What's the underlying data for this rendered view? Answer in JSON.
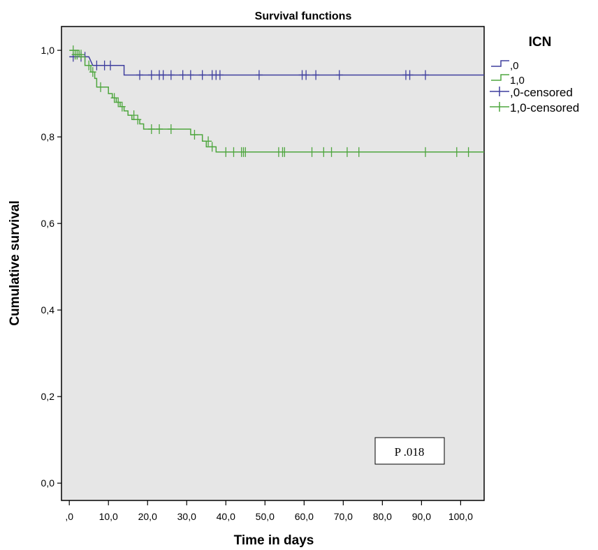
{
  "chart_data": {
    "type": "line",
    "subtype": "kaplan-meier step",
    "title": "Survival functions",
    "xlabel": "Time in days",
    "ylabel": "Cumulative survival",
    "xlim": [
      -2,
      106
    ],
    "ylim": [
      -0.04,
      1.055
    ],
    "xticks": [
      0,
      10,
      20,
      30,
      40,
      50,
      60,
      70,
      80,
      90,
      100
    ],
    "xtick_labels": [
      ",0",
      "10,0",
      "20,0",
      "30,0",
      "40,0",
      "50,0",
      "60,0",
      "70,0",
      "80,0",
      "90,0",
      "100,0"
    ],
    "yticks": [
      0,
      0.2,
      0.4,
      0.6,
      0.8,
      1.0
    ],
    "ytick_labels": [
      "0,0",
      "0,2",
      "0,4",
      "0,6",
      "0,8",
      "1,0"
    ],
    "grid": false,
    "plot_background": "#e6e6e6",
    "legend": {
      "title": "ICN",
      "placement": "right-top",
      "entries": [
        ",0",
        "1,0",
        ",0-censored",
        "1,0-censored"
      ]
    },
    "annotation": "P .018",
    "series": [
      {
        "name": ",0",
        "color": "#3f3f9e",
        "steps": [
          [
            0,
            0.985
          ],
          [
            5,
            0.985
          ],
          [
            5.5,
            0.975
          ],
          [
            6,
            0.965
          ],
          [
            14,
            0.965
          ],
          [
            14,
            0.943
          ],
          [
            106,
            0.943
          ]
        ],
        "censored": [
          [
            1,
            0.985
          ],
          [
            3,
            0.985
          ],
          [
            4,
            0.985
          ],
          [
            7,
            0.965
          ],
          [
            9,
            0.965
          ],
          [
            10.5,
            0.965
          ],
          [
            18,
            0.943
          ],
          [
            21,
            0.943
          ],
          [
            23,
            0.943
          ],
          [
            24,
            0.943
          ],
          [
            26,
            0.943
          ],
          [
            29,
            0.943
          ],
          [
            31,
            0.943
          ],
          [
            34,
            0.943
          ],
          [
            36.5,
            0.943
          ],
          [
            37.5,
            0.943
          ],
          [
            38.5,
            0.943
          ],
          [
            48.5,
            0.943
          ],
          [
            59.5,
            0.943
          ],
          [
            60.5,
            0.943
          ],
          [
            63,
            0.943
          ],
          [
            69,
            0.943
          ],
          [
            86,
            0.943
          ],
          [
            87,
            0.943
          ],
          [
            91,
            0.943
          ]
        ]
      },
      {
        "name": "1,0",
        "color": "#4ea63e",
        "steps": [
          [
            0,
            1.0
          ],
          [
            2.5,
            1.0
          ],
          [
            2.5,
            0.985
          ],
          [
            4,
            0.985
          ],
          [
            4,
            0.965
          ],
          [
            5.5,
            0.965
          ],
          [
            5.5,
            0.95
          ],
          [
            6.5,
            0.95
          ],
          [
            6.5,
            0.935
          ],
          [
            7,
            0.935
          ],
          [
            7,
            0.915
          ],
          [
            10,
            0.915
          ],
          [
            10,
            0.9
          ],
          [
            11,
            0.9
          ],
          [
            11,
            0.89
          ],
          [
            12,
            0.89
          ],
          [
            12,
            0.88
          ],
          [
            13,
            0.88
          ],
          [
            13,
            0.87
          ],
          [
            14,
            0.87
          ],
          [
            14,
            0.86
          ],
          [
            15,
            0.86
          ],
          [
            15,
            0.85
          ],
          [
            16,
            0.85
          ],
          [
            16,
            0.84
          ],
          [
            18,
            0.84
          ],
          [
            18,
            0.83
          ],
          [
            19,
            0.83
          ],
          [
            19,
            0.818
          ],
          [
            31,
            0.818
          ],
          [
            31,
            0.805
          ],
          [
            34,
            0.805
          ],
          [
            34,
            0.79
          ],
          [
            35,
            0.79
          ],
          [
            35,
            0.777
          ],
          [
            37.5,
            0.777
          ],
          [
            37.5,
            0.765
          ],
          [
            106,
            0.765
          ]
        ],
        "censored": [
          [
            1,
            1.0
          ],
          [
            1.5,
            0.99
          ],
          [
            2,
            0.99
          ],
          [
            3,
            0.99
          ],
          [
            5,
            0.965
          ],
          [
            6,
            0.95
          ],
          [
            8,
            0.915
          ],
          [
            11.5,
            0.89
          ],
          [
            12.5,
            0.88
          ],
          [
            13.5,
            0.87
          ],
          [
            16.5,
            0.85
          ],
          [
            17.5,
            0.84
          ],
          [
            21,
            0.818
          ],
          [
            23,
            0.818
          ],
          [
            26,
            0.818
          ],
          [
            32,
            0.805
          ],
          [
            35.5,
            0.79
          ],
          [
            36.5,
            0.777
          ],
          [
            40,
            0.765
          ],
          [
            42,
            0.765
          ],
          [
            44,
            0.765
          ],
          [
            44.5,
            0.765
          ],
          [
            45,
            0.765
          ],
          [
            53.5,
            0.765
          ],
          [
            54.5,
            0.765
          ],
          [
            55,
            0.765
          ],
          [
            62,
            0.765
          ],
          [
            65,
            0.765
          ],
          [
            67,
            0.765
          ],
          [
            71,
            0.765
          ],
          [
            74,
            0.765
          ],
          [
            91,
            0.765
          ],
          [
            99,
            0.765
          ],
          [
            102,
            0.765
          ]
        ]
      }
    ]
  }
}
